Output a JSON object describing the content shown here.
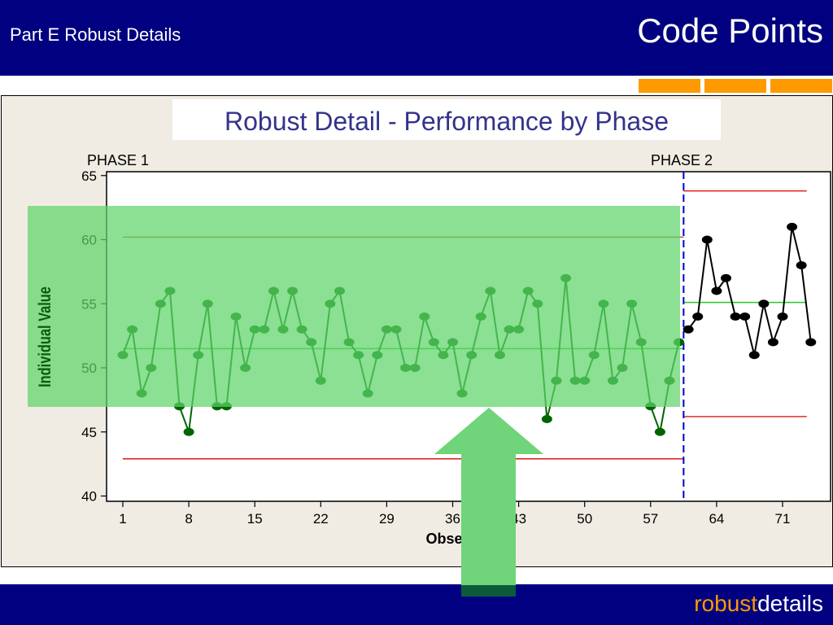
{
  "header": {
    "left_title": "Part E Robust Details",
    "right_title": "Code Points",
    "background": "#000080"
  },
  "slide_title": "Robust Detail - Performance by Phase",
  "footer": {
    "brand_part1": "robust",
    "brand_part2": "details",
    "brand_part1_color": "#ff9900",
    "brand_part2_color": "#ffffff"
  },
  "chart_data": {
    "type": "line",
    "title": "",
    "xlabel": "Observation",
    "ylabel": "Individual Value",
    "xlim": [
      1,
      74
    ],
    "ylim": [
      40,
      65
    ],
    "x_ticks": [
      1,
      8,
      15,
      22,
      29,
      36,
      43,
      50,
      57,
      64,
      71
    ],
    "y_ticks": [
      40,
      45,
      50,
      55,
      60,
      65
    ],
    "phase_labels": [
      "PHASE 1",
      "PHASE 2"
    ],
    "phase_boundary": 60.5,
    "series": [
      {
        "color": "#006400",
        "x": [
          1,
          2,
          3,
          4,
          5,
          6,
          7,
          8,
          9,
          10,
          11,
          12,
          13,
          14,
          15,
          16,
          17,
          18,
          19,
          20,
          21,
          22,
          23,
          24,
          25,
          26,
          27,
          28,
          29,
          30,
          31,
          32,
          33,
          34,
          35,
          36,
          37,
          38,
          39,
          40,
          41,
          42,
          43,
          44,
          45,
          46,
          47,
          48,
          49,
          50,
          51,
          52,
          53,
          54,
          55,
          56,
          57,
          58,
          59,
          60
        ],
        "values": [
          51,
          53,
          48,
          50,
          55,
          56,
          47,
          45,
          51,
          55,
          47,
          47,
          54,
          50,
          53,
          53,
          56,
          53,
          56,
          53,
          52,
          49,
          55,
          56,
          52,
          51,
          48,
          51,
          53,
          53,
          50,
          50,
          54,
          52,
          51,
          52,
          48,
          51,
          54,
          56,
          51,
          53,
          53,
          56,
          55,
          46,
          49,
          57,
          49,
          49,
          51,
          55,
          49,
          50,
          55,
          52,
          47,
          45,
          49,
          52
        ]
      },
      {
        "color": "#000000",
        "x": [
          61,
          62,
          63,
          64,
          65,
          66,
          67,
          68,
          69,
          70,
          71,
          72,
          73,
          74
        ],
        "values": [
          53,
          54,
          60,
          56,
          57,
          54,
          54,
          51,
          55,
          52,
          54,
          61,
          58,
          52
        ]
      }
    ],
    "control_limits": [
      {
        "phase": 1,
        "ucl": 60.2,
        "center": 51.5,
        "lcl": 42.9
      },
      {
        "phase": 2,
        "ucl": 63.8,
        "center": 55.1,
        "lcl": 46.2
      }
    ],
    "colors": {
      "ucl_phase1": "#b84a1a",
      "limit": "#e00000",
      "center": "#22cc22",
      "boundary": "#0000cc",
      "highlight": "#5ed46a",
      "arrow": "#6fd47a"
    }
  }
}
